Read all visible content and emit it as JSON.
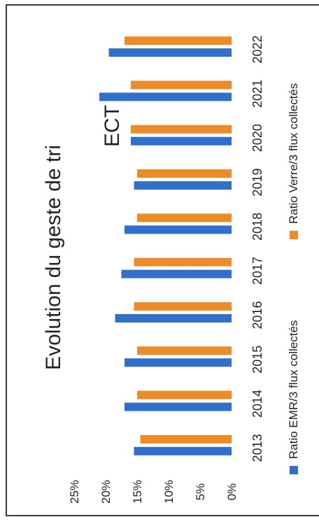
{
  "chart_data": {
    "type": "bar",
    "title": "Evolution du geste de tri",
    "annotation": "ECT",
    "categories": [
      "2013",
      "2014",
      "2015",
      "2016",
      "2017",
      "2018",
      "2019",
      "2020",
      "2021",
      "2022"
    ],
    "series": [
      {
        "name": "Ratio EMR/3 flux collectés",
        "color": "#2e6fd0",
        "values": [
          15.5,
          17.0,
          17.0,
          18.5,
          17.5,
          17.0,
          15.5,
          16.0,
          21.0,
          19.5
        ]
      },
      {
        "name": "Ratio Verre/3 flux collectés",
        "color": "#f08a24",
        "values": [
          14.5,
          15.0,
          15.0,
          15.5,
          15.5,
          15.0,
          15.0,
          16.0,
          16.0,
          17.0
        ]
      }
    ],
    "ylim": [
      0,
      25
    ],
    "yticks": [
      "0%",
      "5%",
      "10%",
      "15%",
      "20%",
      "25%"
    ],
    "orientation": "rotated 90° counter-clockwise",
    "legend_position": "bottom"
  }
}
